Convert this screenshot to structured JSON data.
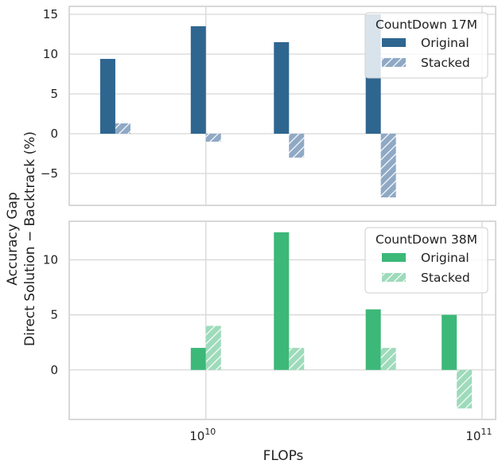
{
  "chart_data": [
    {
      "type": "bar",
      "panel": "top",
      "legend_title": "CountDown 17M",
      "x_scale": "log",
      "x": [
        4700000000.0,
        10000000000.0,
        20000000000.0,
        43000000000.0
      ],
      "xlim": [
        3200000000.0,
        112000000000.0
      ],
      "ylim": [
        -9,
        16
      ],
      "yticks": [
        15,
        10,
        5,
        0,
        -5
      ],
      "series": [
        {
          "name": "Original",
          "values": [
            9.4,
            13.5,
            11.5,
            15.0
          ],
          "color": "#2f6690",
          "hatch": false
        },
        {
          "name": "Stacked",
          "values": [
            1.3,
            -1.0,
            -3.0,
            -8.0
          ],
          "color": "#8fa9c5",
          "hatch": true
        }
      ],
      "legend_position": "top-right"
    },
    {
      "type": "bar",
      "panel": "bottom",
      "legend_title": "CountDown 38M",
      "x_scale": "log",
      "x": [
        10000000000.0,
        20000000000.0,
        43000000000.0,
        81000000000.0
      ],
      "xlim": [
        3200000000.0,
        112000000000.0
      ],
      "ylim": [
        -4.5,
        13.5
      ],
      "yticks": [
        10,
        5,
        0
      ],
      "series": [
        {
          "name": "Original",
          "values": [
            2.0,
            12.5,
            5.5,
            5.0
          ],
          "color": "#3cb878",
          "hatch": false
        },
        {
          "name": "Stacked",
          "values": [
            4.0,
            2.0,
            2.0,
            -3.5
          ],
          "color": "#9edbbb",
          "hatch": true
        }
      ],
      "legend_position": "top-right"
    }
  ],
  "axes": {
    "ylabel_line1": "Accuracy Gap",
    "ylabel_line2": "Direct Solution − Backtrack (%)",
    "xlabel": "FLOPs",
    "xtick_base": "10",
    "xtick_exponents": [
      "10",
      "11"
    ],
    "negative_sign": "−"
  }
}
